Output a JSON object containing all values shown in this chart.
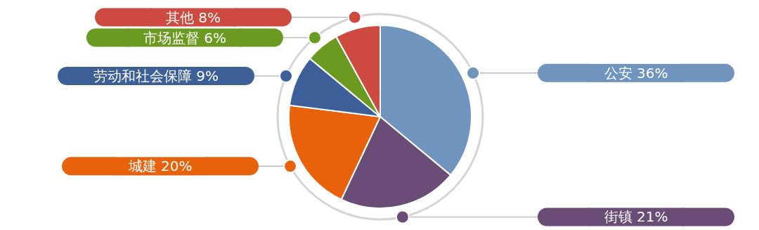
{
  "chart_data": {
    "type": "pie",
    "categories": [
      "公安",
      "街镇",
      "城建",
      "劳动和社会保障",
      "市场监督",
      "其他"
    ],
    "values": [
      36,
      21,
      20,
      9,
      6,
      8
    ],
    "value_labels": [
      "36%",
      "21%",
      "20%",
      "9%",
      "6%",
      "8%"
    ],
    "legend": "bottom right",
    "colors": [
      "#6f94bd",
      "#694d77",
      "#e8620c",
      "#3d5f97",
      "#6a9a1f",
      "#cc4a3f"
    ]
  }
}
